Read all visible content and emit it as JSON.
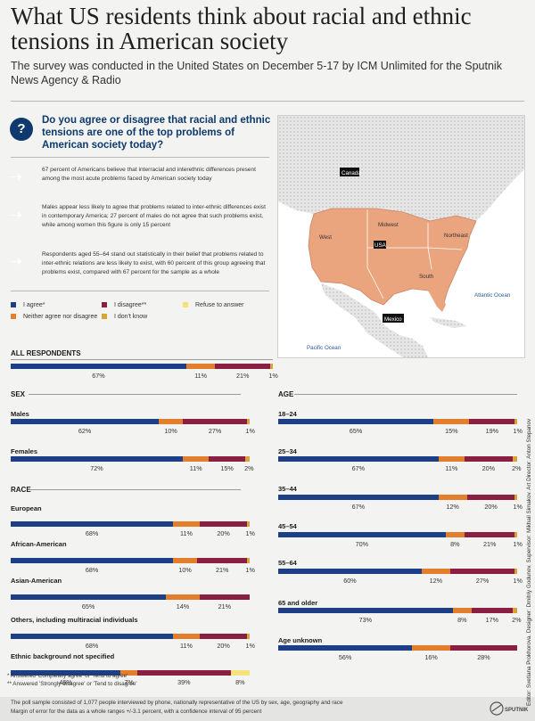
{
  "title": "What US residents think about racial and ethnic tensions in American society",
  "subtitle": "The survey was conducted in the United States on December 5-17 by ICM Unlimited for the Sputnik News Agency & Radio",
  "question": "Do you agree or disagree that racial and ethnic tensions are one of the top problems of American society today?",
  "findings": [
    "67 percent of Americans believe that interracial and interethnic differences present among the most acute problems faced by American society today",
    "Males appear less likely to agree that problems related to inter-ethnic differences exist in contemporary America; 27 percent of males do not agree that such problems exist, while among women this figure is only 15 percent",
    "Respondents aged 55–64 stand out statistically in their belief that problems related to inter-ethnic relations are less likely to exist, with 60 percent of this group agreeing that problems exist, compared with 67 percent for the sample as a whole"
  ],
  "legend": [
    {
      "label": "I agree*",
      "color": "#1d3f86"
    },
    {
      "label": "I disagree**",
      "color": "#8b1e43"
    },
    {
      "label": "Refuse to answer",
      "color": "#f6e27a"
    },
    {
      "label": "Neither agree nor disagree",
      "color": "#e37f2c"
    },
    {
      "label": "I don't know",
      "color": "#d9a33a"
    }
  ],
  "map": {
    "labels": {
      "canada": "Canada",
      "usa": "USA",
      "mexico": "Mexico",
      "west": "West",
      "midwest": "Midwest",
      "northeast": "Northeast",
      "south": "South",
      "pacific": "Pacific Ocean",
      "atlantic": "Atlantic Ocean"
    },
    "colors": {
      "us_fill": "#eaa47e",
      "land": "#cfcfcf",
      "ocean": "#ffffff",
      "marker": "#111111"
    }
  },
  "chart_data": {
    "type": "bar",
    "orientation": "horizontal-stacked",
    "series_order": [
      "I agree*",
      "Neither agree nor disagree",
      "I disagree**",
      "I don't know",
      "Refuse to answer"
    ],
    "colors": {
      "agree": "#1d3f86",
      "neither": "#e37f2c",
      "disagree": "#8b1e43",
      "dontknow": "#d9a33a",
      "refuse": "#f6e27a"
    },
    "sections": {
      "all": {
        "title": "ALL RESPONDENTS",
        "rows": [
          {
            "label": "",
            "agree": 67,
            "neither": 11,
            "disagree": 21,
            "dontknow": 1,
            "refuse": 0
          }
        ]
      },
      "sex": {
        "title": "SEX",
        "rows": [
          {
            "label": "Males",
            "agree": 62,
            "neither": 10,
            "disagree": 27,
            "dontknow": 1,
            "refuse": 0
          },
          {
            "label": "Females",
            "agree": 72,
            "neither": 11,
            "disagree": 15,
            "dontknow": 2,
            "refuse": 0
          }
        ]
      },
      "race": {
        "title": "RACE",
        "rows": [
          {
            "label": "European",
            "agree": 68,
            "neither": 11,
            "disagree": 20,
            "dontknow": 1,
            "refuse": 0
          },
          {
            "label": "African-American",
            "agree": 68,
            "neither": 10,
            "disagree": 21,
            "dontknow": 1,
            "refuse": 0
          },
          {
            "label": "Asian-American",
            "agree": 65,
            "neither": 14,
            "disagree": 21,
            "dontknow": 0,
            "refuse": 0
          },
          {
            "label": "Others, including multiracial individuals",
            "agree": 68,
            "neither": 11,
            "disagree": 20,
            "dontknow": 1,
            "refuse": 0
          },
          {
            "label": "Ethnic background not specified",
            "agree": 46,
            "neither": 7,
            "disagree": 39,
            "dontknow": 0,
            "refuse": 8
          }
        ]
      },
      "age": {
        "title": "AGE",
        "rows": [
          {
            "label": "18–24",
            "agree": 65,
            "neither": 15,
            "disagree": 19,
            "dontknow": 1,
            "refuse": 0
          },
          {
            "label": "25–34",
            "agree": 67,
            "neither": 11,
            "disagree": 20,
            "dontknow": 2,
            "refuse": 0
          },
          {
            "label": "35–44",
            "agree": 67,
            "neither": 12,
            "disagree": 20,
            "dontknow": 1,
            "refuse": 0
          },
          {
            "label": "45–54",
            "agree": 70,
            "neither": 8,
            "disagree": 21,
            "dontknow": 1,
            "refuse": 0
          },
          {
            "label": "55–64",
            "agree": 60,
            "neither": 12,
            "disagree": 27,
            "dontknow": 1,
            "refuse": 0
          },
          {
            "label": "65 and older",
            "agree": 73,
            "neither": 8,
            "disagree": 17,
            "dontknow": 2,
            "refuse": 0
          },
          {
            "label": "Age unknown",
            "agree": 56,
            "neither": 16,
            "disagree": 28,
            "dontknow": 0,
            "refuse": 0
          }
        ]
      }
    }
  },
  "footnotes": [
    "* Answered 'Completely agree' or 'Tend to agree'",
    "** Answered 'Strongly disagree' or 'Tend to disagree'"
  ],
  "bottom_notes": [
    "The poll sample consisted of 1,077 people interviewed by phone, nationally representative of the US by sex, age, geography and race",
    "Margin of error for the data as a whole ranges +/-3.1 percent, with a confidence interval of 95 percent"
  ],
  "logo_text": "SPUTNIK",
  "credits": "Editor: Svetlana Prokhorova. Designer: Dmitriy Godunov. Supervisor: Mikhail Simakov. Art Director: Anton Stepanov"
}
